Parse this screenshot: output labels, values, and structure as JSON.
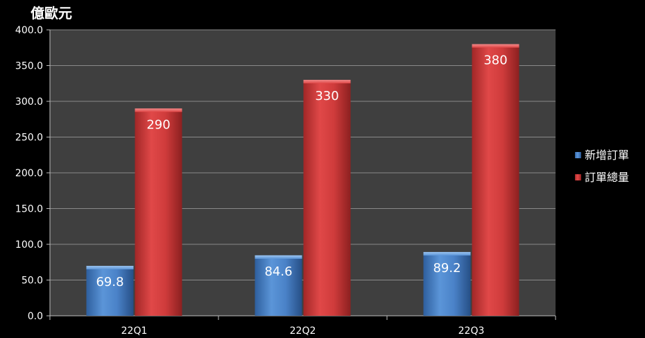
{
  "chart_data": {
    "type": "bar",
    "unit_label": "億歐元",
    "categories": [
      "22Q1",
      "22Q2",
      "22Q3"
    ],
    "series": [
      {
        "name": "新增訂單",
        "values": [
          69.8,
          84.6,
          89.2
        ],
        "value_labels": [
          "69.8",
          "84.6",
          "89.2"
        ],
        "color": "#4a82c8"
      },
      {
        "name": "訂單總量",
        "values": [
          290,
          330,
          380
        ],
        "value_labels": [
          "290",
          "330",
          "380"
        ],
        "color": "#cf3b3b"
      }
    ],
    "ylim": [
      0,
      400
    ],
    "yticks": [
      0,
      50,
      100,
      150,
      200,
      250,
      300,
      350,
      400
    ],
    "ytick_labels": [
      "0.0",
      "50.0",
      "100.0",
      "150.0",
      "200.0",
      "250.0",
      "300.0",
      "350.0",
      "400.0"
    ],
    "grid": true,
    "legend_position": "right",
    "plot_background": "#3f3f3f",
    "page_background": "#000000"
  }
}
